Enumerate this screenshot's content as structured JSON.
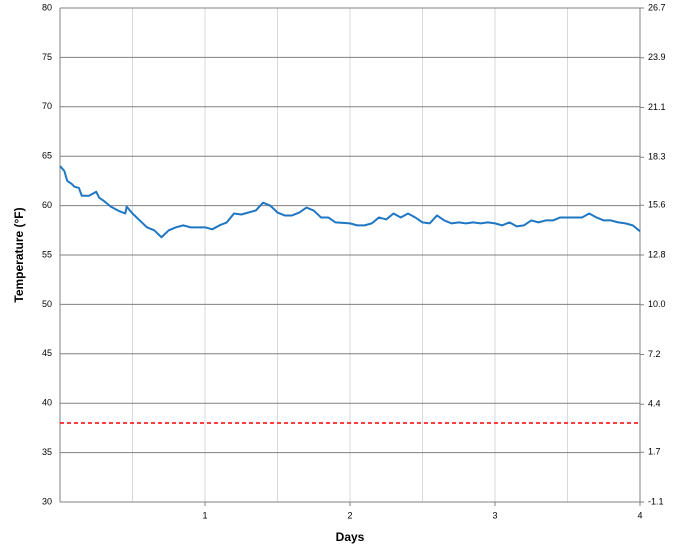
{
  "chart_data": {
    "type": "line",
    "x_label": "Days",
    "y_label": "Temperature (°F)",
    "x": [
      0,
      0.03,
      0.05,
      0.08,
      0.1,
      0.13,
      0.15,
      0.2,
      0.25,
      0.27,
      0.3,
      0.35,
      0.4,
      0.45,
      0.46,
      0.5,
      0.55,
      0.6,
      0.65,
      0.7,
      0.75,
      0.8,
      0.85,
      0.9,
      1.0,
      1.05,
      1.1,
      1.15,
      1.2,
      1.25,
      1.3,
      1.35,
      1.4,
      1.45,
      1.5,
      1.55,
      1.6,
      1.65,
      1.7,
      1.75,
      1.8,
      1.85,
      1.9,
      2.0,
      2.05,
      2.1,
      2.15,
      2.2,
      2.25,
      2.3,
      2.35,
      2.4,
      2.45,
      2.5,
      2.55,
      2.6,
      2.65,
      2.7,
      2.75,
      2.8,
      2.85,
      2.9,
      2.95,
      3.0,
      3.05,
      3.1,
      3.15,
      3.2,
      3.25,
      3.3,
      3.35,
      3.4,
      3.45,
      3.5,
      3.55,
      3.6,
      3.65,
      3.7,
      3.75,
      3.8,
      3.85,
      3.9,
      3.95,
      4.0
    ],
    "values": [
      64.0,
      63.5,
      62.5,
      62.2,
      61.9,
      61.8,
      61.0,
      61.0,
      61.4,
      60.8,
      60.5,
      59.9,
      59.5,
      59.2,
      59.9,
      59.2,
      58.5,
      57.8,
      57.5,
      56.8,
      57.5,
      57.8,
      58.0,
      57.8,
      57.8,
      57.6,
      58.0,
      58.3,
      59.2,
      59.1,
      59.3,
      59.5,
      60.3,
      60.0,
      59.3,
      59.0,
      59.0,
      59.3,
      59.8,
      59.5,
      58.8,
      58.8,
      58.3,
      58.2,
      58.0,
      58.0,
      58.2,
      58.8,
      58.6,
      59.2,
      58.8,
      59.2,
      58.8,
      58.3,
      58.2,
      59.0,
      58.5,
      58.2,
      58.3,
      58.2,
      58.3,
      58.2,
      58.3,
      58.2,
      58.0,
      58.3,
      57.9,
      58.0,
      58.5,
      58.3,
      58.5,
      58.5,
      58.8,
      58.8,
      58.8,
      58.8,
      59.2,
      58.8,
      58.5,
      58.5,
      58.3,
      58.2,
      58.0,
      57.4
    ],
    "color": "#1f77c4",
    "xlim": [
      0,
      4
    ],
    "xticks": [
      1,
      2,
      3,
      4
    ],
    "xgrid": [
      0.5,
      1,
      1.5,
      2,
      2.5,
      3,
      3.5
    ],
    "ylim": [
      30,
      80
    ],
    "yticks": [
      30,
      35,
      40,
      45,
      50,
      55,
      60,
      65,
      70,
      75,
      80
    ],
    "y2lim": [
      -1.1,
      26.7
    ],
    "y2ticks": [
      -1.1,
      1.7,
      4.4,
      7.2,
      {
        "value": 10,
        "label": "10.0"
      },
      12.8,
      15.6,
      18.3,
      21.1,
      23.9,
      26.7
    ],
    "reference_line": {
      "value": 38,
      "color": "#ff0000",
      "style": "dashed"
    },
    "grid": true
  }
}
